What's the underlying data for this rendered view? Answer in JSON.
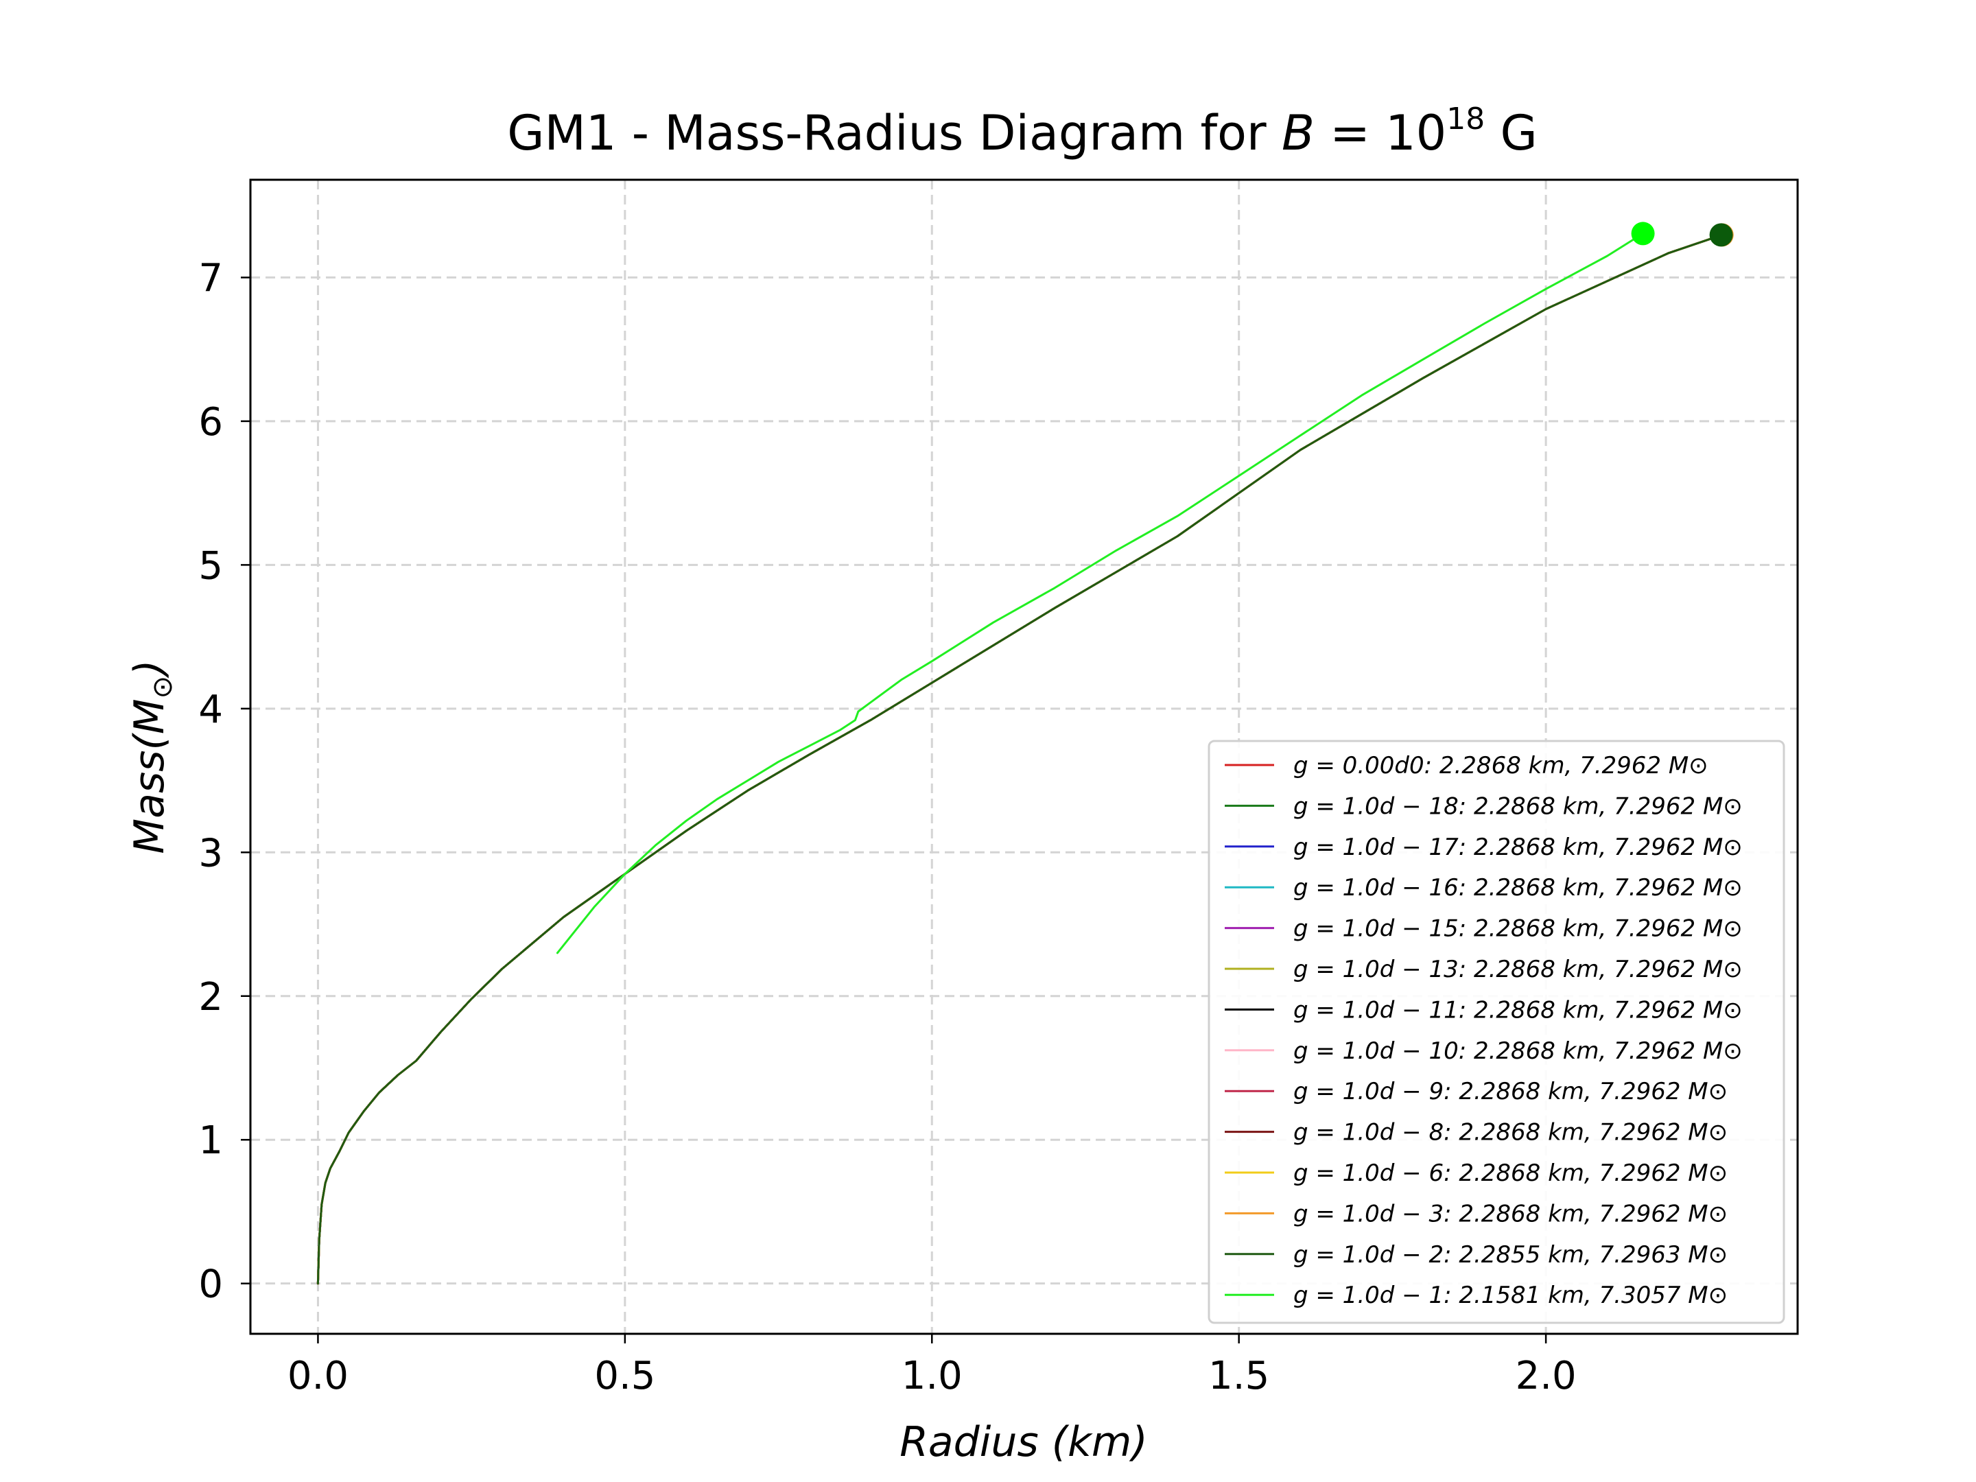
{
  "chart_data": {
    "type": "line",
    "title_prefix": "GM1 - Mass-Radius Diagram for ",
    "title_var": "B",
    "title_eq": " = 10",
    "title_exp": "18",
    "title_unit": " G",
    "xlabel_italic": "Radius",
    "xlabel_rest": " (km)",
    "ylabel_var": "Mass(M",
    "ylabel_sub": "⊙",
    "ylabel_close": ")",
    "xlim": [
      -0.11,
      2.41
    ],
    "ylim": [
      -0.35,
      7.68
    ],
    "xticks": [
      0.0,
      0.5,
      1.0,
      1.5,
      2.0
    ],
    "xtick_labels": [
      "0.0",
      "0.5",
      "1.0",
      "1.5",
      "2.0"
    ],
    "yticks": [
      0,
      1,
      2,
      3,
      4,
      5,
      6,
      7
    ],
    "ytick_labels": [
      "0",
      "1",
      "2",
      "3",
      "4",
      "5",
      "6",
      "7"
    ],
    "grid": true,
    "legend_position": "lower-right",
    "series": [
      {
        "name": "g = 0.00d0: 2.2868 km, 7.2962 M⊙",
        "color": "#d62020",
        "curve": "main"
      },
      {
        "name": "g = 1.0d − 18: 2.2868 km, 7.2962 M⊙",
        "color": "#1a7a1a",
        "curve": "main"
      },
      {
        "name": "g = 1.0d − 17: 2.2868 km, 7.2962 M⊙",
        "color": "#2222cc",
        "curve": "main"
      },
      {
        "name": "g = 1.0d − 16: 2.2868 km, 7.2962 M⊙",
        "color": "#1fb8c4",
        "curve": "main"
      },
      {
        "name": "g = 1.0d − 15: 2.2868 km, 7.2962 M⊙",
        "color": "#a020b0",
        "curve": "main"
      },
      {
        "name": "g = 1.0d − 13: 2.2868 km, 7.2962 M⊙",
        "color": "#b0b020",
        "curve": "main"
      },
      {
        "name": "g = 1.0d − 11: 2.2868 km, 7.2962 M⊙",
        "color": "#000000",
        "curve": "main"
      },
      {
        "name": "g = 1.0d − 10: 2.2868 km, 7.2962 M⊙",
        "color": "#ffb6c8",
        "curve": "main"
      },
      {
        "name": "g = 1.0d − 9: 2.2868 km, 7.2962 M⊙",
        "color": "#c0284a",
        "curve": "main"
      },
      {
        "name": "g = 1.0d − 8: 2.2868 km, 7.2962 M⊙",
        "color": "#7a1414",
        "curve": "main"
      },
      {
        "name": "g = 1.0d − 6: 2.2868 km, 7.2962 M⊙",
        "color": "#f2cc1a",
        "curve": "main"
      },
      {
        "name": "g = 1.0d − 3: 2.2868 km, 7.2962 M⊙",
        "color": "#f39a2a",
        "curve": "main"
      },
      {
        "name": "g = 1.0d − 2: 2.2855 km, 7.2963 M⊙",
        "color": "#1f5a12",
        "curve": "main"
      },
      {
        "name": "g = 1.0d − 1: 2.1581 km, 7.3057 M⊙",
        "color": "#22ee22",
        "curve": "light"
      }
    ],
    "curves": {
      "main": {
        "x": [
          0.0,
          0.002,
          0.006,
          0.012,
          0.02,
          0.035,
          0.05,
          0.075,
          0.1,
          0.13,
          0.16,
          0.2,
          0.25,
          0.3,
          0.4,
          0.5,
          0.6,
          0.7,
          0.8,
          0.9,
          1.0,
          1.2,
          1.4,
          1.6,
          1.8,
          2.0,
          2.2,
          2.2868
        ],
        "y": [
          0.0,
          0.3,
          0.55,
          0.7,
          0.8,
          0.92,
          1.05,
          1.2,
          1.33,
          1.45,
          1.55,
          1.75,
          1.98,
          2.19,
          2.55,
          2.85,
          3.15,
          3.43,
          3.68,
          3.92,
          4.18,
          4.7,
          5.2,
          5.8,
          6.3,
          6.78,
          7.17,
          7.2962
        ]
      },
      "light": {
        "x": [
          0.39,
          0.45,
          0.5,
          0.55,
          0.6,
          0.65,
          0.7,
          0.75,
          0.8,
          0.85,
          0.875,
          0.88,
          0.95,
          1.0,
          1.1,
          1.2,
          1.3,
          1.4,
          1.5,
          1.6,
          1.7,
          1.8,
          1.9,
          2.0,
          2.1,
          2.1581
        ],
        "y": [
          2.3,
          2.62,
          2.85,
          3.05,
          3.22,
          3.37,
          3.5,
          3.63,
          3.74,
          3.85,
          3.92,
          3.98,
          4.2,
          4.33,
          4.6,
          4.84,
          5.1,
          5.34,
          5.62,
          5.9,
          6.18,
          6.43,
          6.68,
          6.92,
          7.15,
          7.3057
        ]
      }
    },
    "endpoints": [
      {
        "x": 2.1581,
        "y": 7.3057,
        "color": "#00ff00"
      },
      {
        "x": 2.2868,
        "y": 7.2962,
        "color": "#f39a2a"
      },
      {
        "x": 2.2855,
        "y": 7.2963,
        "color": "#0b5a0b"
      }
    ]
  }
}
